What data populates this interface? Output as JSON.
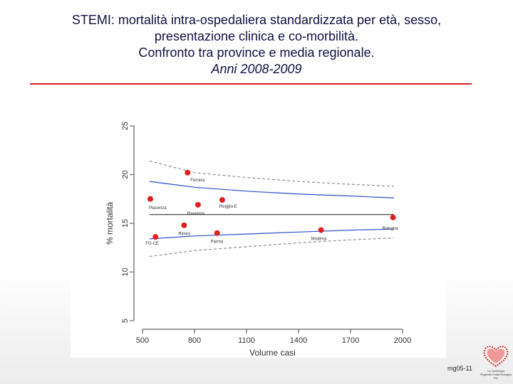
{
  "slide": {
    "title_lines": [
      "STEMI: mortalità intra-ospedaliera standardizzata per età, sesso,",
      "presentazione clinica e co-morbilità.",
      "Confronto tra province e media regionale."
    ],
    "subtitle": "Anni 2008-2009",
    "accent_color": "#d42020",
    "footer_code": "mg05-11",
    "logo_icon": "red-heart-logo-icon",
    "logo_text": [
      "La Cardiologia",
      "Regionale Emilia-Romagna",
      "Rer"
    ]
  },
  "chart_data": {
    "type": "scatter",
    "xlabel": "Volume casi",
    "ylabel": "% mortalità",
    "xlim": [
      500,
      2000
    ],
    "ylim": [
      5,
      25
    ],
    "x_ticks": [
      500,
      800,
      1100,
      1400,
      1700,
      2000
    ],
    "y_ticks": [
      5,
      10,
      15,
      20,
      25
    ],
    "grid": false,
    "legend": "none",
    "point_color": "#e02020",
    "points": [
      {
        "label": "Ferrara",
        "x": 760,
        "y": 20.2
      },
      {
        "label": "Piacenza",
        "x": 545,
        "y": 17.5
      },
      {
        "label": "Ravenna",
        "x": 820,
        "y": 16.9
      },
      {
        "label": "Reggio-E",
        "x": 960,
        "y": 17.4
      },
      {
        "label": "Rimini",
        "x": 740,
        "y": 14.8
      },
      {
        "label": "FO-CE",
        "x": 575,
        "y": 13.6
      },
      {
        "label": "Parma",
        "x": 930,
        "y": 14.0
      },
      {
        "label": "Modena",
        "x": 1530,
        "y": 14.3
      },
      {
        "label": "Bologna",
        "x": 1945,
        "y": 15.6
      }
    ],
    "reference_lines": [
      {
        "name": "mean",
        "color": "#333333",
        "style": "solid",
        "x": [
          540,
          1950
        ],
        "y": [
          15.9,
          15.9
        ]
      },
      {
        "name": "upper-95",
        "color": "#3050c8",
        "style": "solid",
        "x": [
          540,
          800,
          1100,
          1400,
          1700,
          1950
        ],
        "y": [
          19.3,
          18.7,
          18.3,
          18.0,
          17.8,
          17.6
        ]
      },
      {
        "name": "lower-95",
        "color": "#3050c8",
        "style": "solid",
        "x": [
          540,
          800,
          1100,
          1400,
          1700,
          1950
        ],
        "y": [
          13.4,
          13.7,
          13.9,
          14.1,
          14.3,
          14.4
        ]
      },
      {
        "name": "upper-99",
        "color": "#909090",
        "style": "dashed",
        "x": [
          540,
          800,
          1100,
          1400,
          1700,
          1950
        ],
        "y": [
          21.4,
          20.2,
          19.7,
          19.3,
          19.0,
          18.8
        ]
      },
      {
        "name": "lower-99",
        "color": "#909090",
        "style": "dashed",
        "x": [
          540,
          800,
          1100,
          1400,
          1700,
          1950
        ],
        "y": [
          11.6,
          12.2,
          12.6,
          13.0,
          13.3,
          13.5
        ]
      }
    ]
  }
}
